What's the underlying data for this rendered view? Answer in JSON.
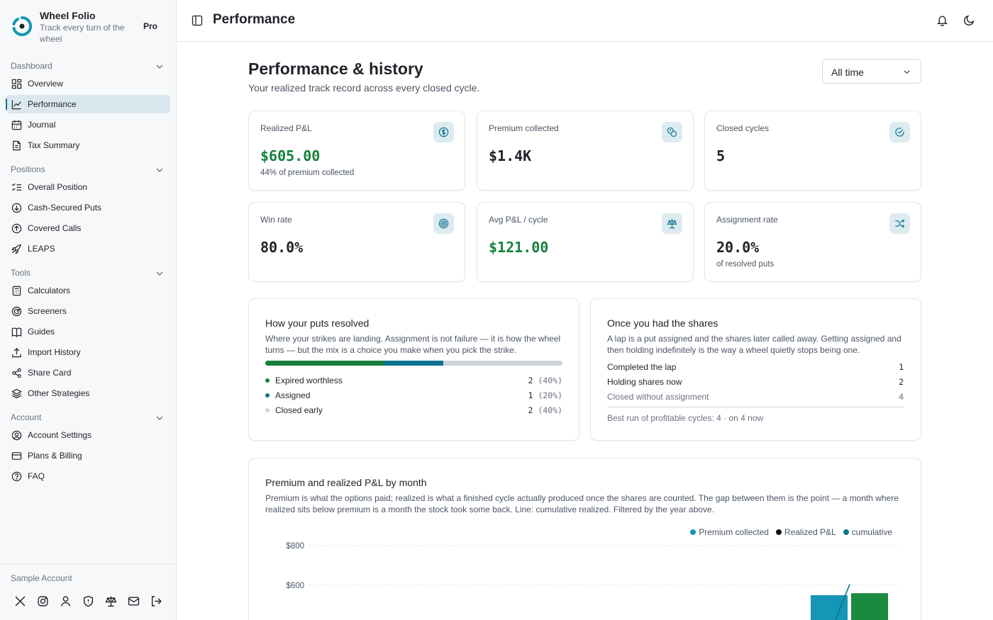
{
  "brand": {
    "name": "Wheel Folio",
    "tagline": "Track every turn of the wheel",
    "badge": "Pro"
  },
  "sidebar": {
    "sections": [
      {
        "label": "Dashboard",
        "items": [
          {
            "label": "Overview",
            "icon": "grid-icon"
          },
          {
            "label": "Performance",
            "icon": "line-chart-icon",
            "active": true
          },
          {
            "label": "Journal",
            "icon": "calendar-icon"
          },
          {
            "label": "Tax Summary",
            "icon": "document-icon"
          }
        ]
      },
      {
        "label": "Positions",
        "items": [
          {
            "label": "Overall Position",
            "icon": "list-check-icon"
          },
          {
            "label": "Cash-Secured Puts",
            "icon": "arrow-down-circle-icon"
          },
          {
            "label": "Covered Calls",
            "icon": "arrow-up-circle-icon"
          },
          {
            "label": "LEAPS",
            "icon": "rocket-icon"
          }
        ]
      },
      {
        "label": "Tools",
        "items": [
          {
            "label": "Calculators",
            "icon": "calculator-icon"
          },
          {
            "label": "Screeners",
            "icon": "radar-icon"
          },
          {
            "label": "Guides",
            "icon": "book-icon"
          },
          {
            "label": "Import History",
            "icon": "upload-icon"
          },
          {
            "label": "Share Card",
            "icon": "share-icon"
          },
          {
            "label": "Other Strategies",
            "icon": "layers-icon"
          }
        ]
      },
      {
        "label": "Account",
        "items": [
          {
            "label": "Account Settings",
            "icon": "user-circle-icon"
          },
          {
            "label": "Plans & Billing",
            "icon": "credit-card-icon"
          },
          {
            "label": "FAQ",
            "icon": "help-circle-icon"
          }
        ]
      }
    ],
    "account_name": "Sample Account"
  },
  "header": {
    "title": "Performance"
  },
  "page": {
    "title": "Performance & history",
    "subtitle": "Your realized track record across every closed cycle.",
    "range_select": "All time"
  },
  "stats": {
    "realized": {
      "label": "Realized P&L",
      "value": "$605.00",
      "note": "44% of premium collected"
    },
    "premium": {
      "label": "Premium collected",
      "value": "$1.4K"
    },
    "cycles": {
      "label": "Closed cycles",
      "value": "5"
    },
    "win": {
      "label": "Win rate",
      "value": "80.0%"
    },
    "avg": {
      "label": "Avg P&L / cycle",
      "value": "$121.00"
    },
    "assign": {
      "label": "Assignment rate",
      "value": "20.0%",
      "note": "of resolved puts"
    }
  },
  "puts": {
    "title": "How your puts resolved",
    "desc": "Where your strikes are landing. Assignment is not failure — it is how the wheel turns — but the mix is a choice you make when you pick the strike.",
    "rows": [
      {
        "label": "Expired worthless",
        "count": "2",
        "pct": "(40%)",
        "share": 40,
        "color": "#16803c"
      },
      {
        "label": "Assigned",
        "count": "1",
        "pct": "(20%)",
        "share": 20,
        "color": "#0e7490"
      },
      {
        "label": "Closed early",
        "count": "2",
        "pct": "(40%)",
        "share": 40,
        "color": "#cfd4da"
      }
    ]
  },
  "shares": {
    "title": "Once you had the shares",
    "desc": "A lap is a put assigned and the shares later called away. Getting assigned and then holding indefinitely is the way a wheel quietly stops being one.",
    "rows": [
      {
        "label": "Completed the lap",
        "value": "1"
      },
      {
        "label": "Holding shares now",
        "value": "2"
      },
      {
        "label": "Closed without assignment",
        "value": "4"
      }
    ],
    "footnote": "Best run of profitable cycles: 4 · on 4 now"
  },
  "monthly": {
    "title": "Premium and realized P&L by month",
    "desc": "Premium is what the options paid; realized is what a finished cycle actually produced once the shares are counted. The gap between them is the point — a month where realized sits below premium is a month the stock took some back. Line: cumulative realized. Filtered by the year above."
  },
  "chart_data": {
    "type": "bar",
    "title": "Premium and realized P&L by month",
    "y_tick_labels": [
      "$800",
      "$600"
    ],
    "series": [
      {
        "name": "Premium collected",
        "values": [
          550
        ],
        "color": "#1596b4"
      },
      {
        "name": "Realized P&L",
        "values": [
          560
        ],
        "color": "#1a8a3e"
      },
      {
        "name": "cumulative",
        "type": "line",
        "values": [
          605
        ],
        "color": "#0e7490"
      }
    ],
    "ylim": [
      0,
      800
    ],
    "grid": true,
    "legend": "top-right"
  }
}
